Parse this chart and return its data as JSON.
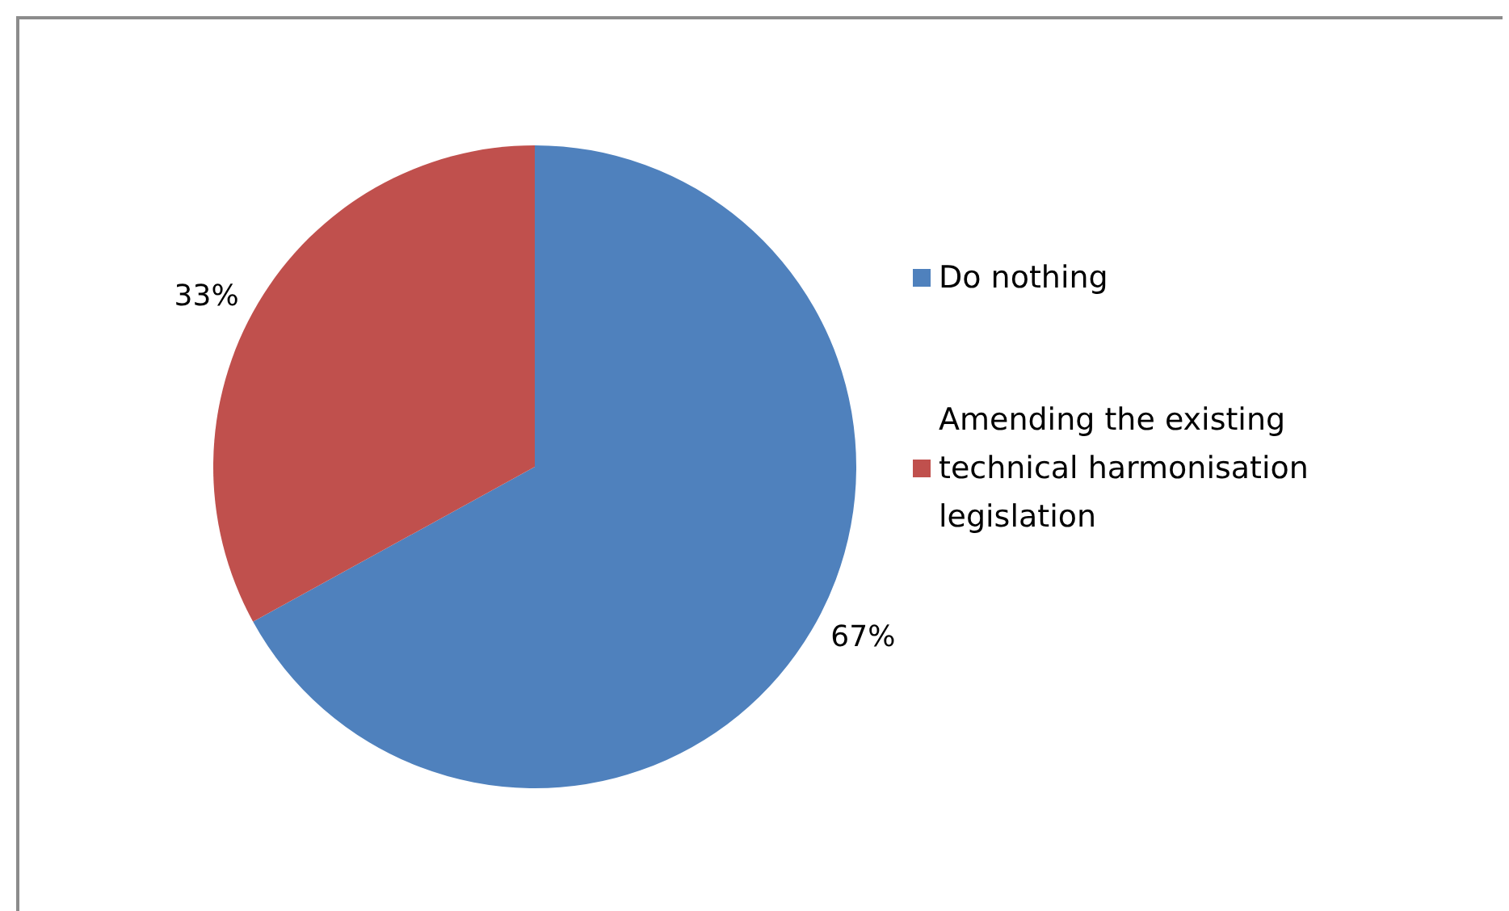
{
  "chart_data": {
    "type": "pie",
    "categories": [
      "Do nothing",
      "Amending the existing technical harmonisation legislation"
    ],
    "values": [
      67,
      33
    ],
    "colors": [
      "#4f81bd",
      "#c0504d"
    ],
    "value_labels": [
      "67%",
      "33%"
    ],
    "legend": "right"
  }
}
